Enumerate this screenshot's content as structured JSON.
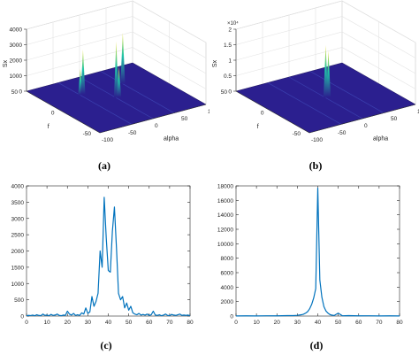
{
  "captions": [
    "(a)",
    "(b)",
    "(c)",
    "(d)"
  ],
  "chart_data": [
    {
      "type": "surface3d",
      "zlabel": "Sx",
      "xlabel": "alpha",
      "ylabel": "f",
      "x_ticks": [
        "-100",
        "-50",
        "0",
        "50",
        "100"
      ],
      "y_ticks": [
        "-50",
        "0",
        "50"
      ],
      "z_ticks": [
        "0",
        "1000",
        "2000",
        "3000",
        "4000"
      ],
      "zlim": [
        0,
        4000
      ],
      "peaks": [
        {
          "alpha": -40,
          "f": 20,
          "value": 1700
        },
        {
          "alpha": -35,
          "f": 20,
          "value": 2900
        },
        {
          "alpha": 40,
          "f": 20,
          "value": 3300
        },
        {
          "alpha": 0,
          "f": 0,
          "value": 3650
        },
        {
          "alpha": 5,
          "f": 0,
          "value": 2000
        }
      ],
      "surface_color": "#2b1f8f",
      "peak_colors": [
        "#21c6a8",
        "#f5e43a"
      ]
    },
    {
      "type": "surface3d",
      "zlabel": "Sx",
      "z_exponent": "×10⁴",
      "xlabel": "alpha",
      "ylabel": "f",
      "x_ticks": [
        "-100",
        "-50",
        "0",
        "50",
        "100"
      ],
      "y_ticks": [
        "-50",
        "0",
        "50"
      ],
      "z_ticks": [
        "0",
        "0.5",
        "1",
        "1.5",
        "2"
      ],
      "zlim": [
        0,
        2
      ],
      "peaks": [
        {
          "alpha": 0,
          "f": 0,
          "value": 1.7
        },
        {
          "alpha": 5,
          "f": 0,
          "value": 1.5
        }
      ],
      "surface_color": "#2b1f8f",
      "peak_colors": [
        "#21c6a8",
        "#f5e43a"
      ]
    },
    {
      "type": "line",
      "xlim": [
        0,
        80
      ],
      "ylim": [
        0,
        4000
      ],
      "x_ticks": [
        0,
        10,
        20,
        30,
        40,
        50,
        60,
        70,
        80
      ],
      "y_ticks": [
        0,
        500,
        1000,
        1500,
        2000,
        2500,
        3000,
        3500,
        4000
      ],
      "color": "#0072bd",
      "x": [
        0,
        1,
        2,
        3,
        4,
        5,
        6,
        7,
        8,
        9,
        10,
        11,
        12,
        13,
        14,
        15,
        16,
        17,
        18,
        19,
        20,
        21,
        22,
        23,
        24,
        25,
        26,
        27,
        28,
        29,
        30,
        31,
        32,
        33,
        34,
        35,
        36,
        37,
        38,
        39,
        40,
        41,
        42,
        43,
        44,
        45,
        46,
        47,
        48,
        49,
        50,
        51,
        52,
        53,
        54,
        55,
        56,
        57,
        58,
        59,
        60,
        61,
        62,
        63,
        64,
        65,
        66,
        67,
        68,
        69,
        70,
        71,
        72,
        73,
        74,
        75,
        76,
        77,
        78,
        79,
        80
      ],
      "y": [
        10,
        20,
        15,
        30,
        10,
        40,
        20,
        10,
        60,
        20,
        30,
        10,
        50,
        20,
        30,
        60,
        20,
        10,
        30,
        20,
        150,
        60,
        30,
        80,
        20,
        40,
        20,
        100,
        60,
        250,
        80,
        130,
        600,
        300,
        450,
        700,
        2000,
        1500,
        3650,
        2400,
        1400,
        1350,
        2600,
        3350,
        2100,
        700,
        500,
        600,
        250,
        400,
        180,
        300,
        100,
        60,
        40,
        80,
        30,
        50,
        30,
        60,
        20,
        40,
        150,
        30,
        20,
        40,
        10,
        30,
        60,
        20,
        10,
        50,
        30,
        20,
        40,
        60,
        20,
        30,
        20,
        30,
        10
      ]
    },
    {
      "type": "line",
      "xlim": [
        0,
        80
      ],
      "ylim": [
        0,
        18000
      ],
      "x_ticks": [
        0,
        10,
        20,
        30,
        40,
        50,
        60,
        70,
        80
      ],
      "y_ticks": [
        0,
        2000,
        4000,
        6000,
        8000,
        10000,
        12000,
        14000,
        16000,
        18000
      ],
      "color": "#0072bd",
      "x": [
        0,
        5,
        10,
        15,
        20,
        25,
        28,
        30,
        32,
        33,
        34,
        35,
        36,
        37,
        38,
        39,
        40,
        41,
        42,
        43,
        44,
        45,
        46,
        47,
        48,
        50,
        52,
        55,
        60,
        65,
        70,
        75,
        80
      ],
      "y": [
        20,
        30,
        20,
        40,
        30,
        60,
        60,
        100,
        180,
        250,
        400,
        600,
        1000,
        1600,
        2500,
        3800,
        17700,
        5000,
        2600,
        1300,
        700,
        400,
        200,
        120,
        80,
        400,
        40,
        60,
        30,
        40,
        20,
        30,
        20
      ]
    }
  ]
}
